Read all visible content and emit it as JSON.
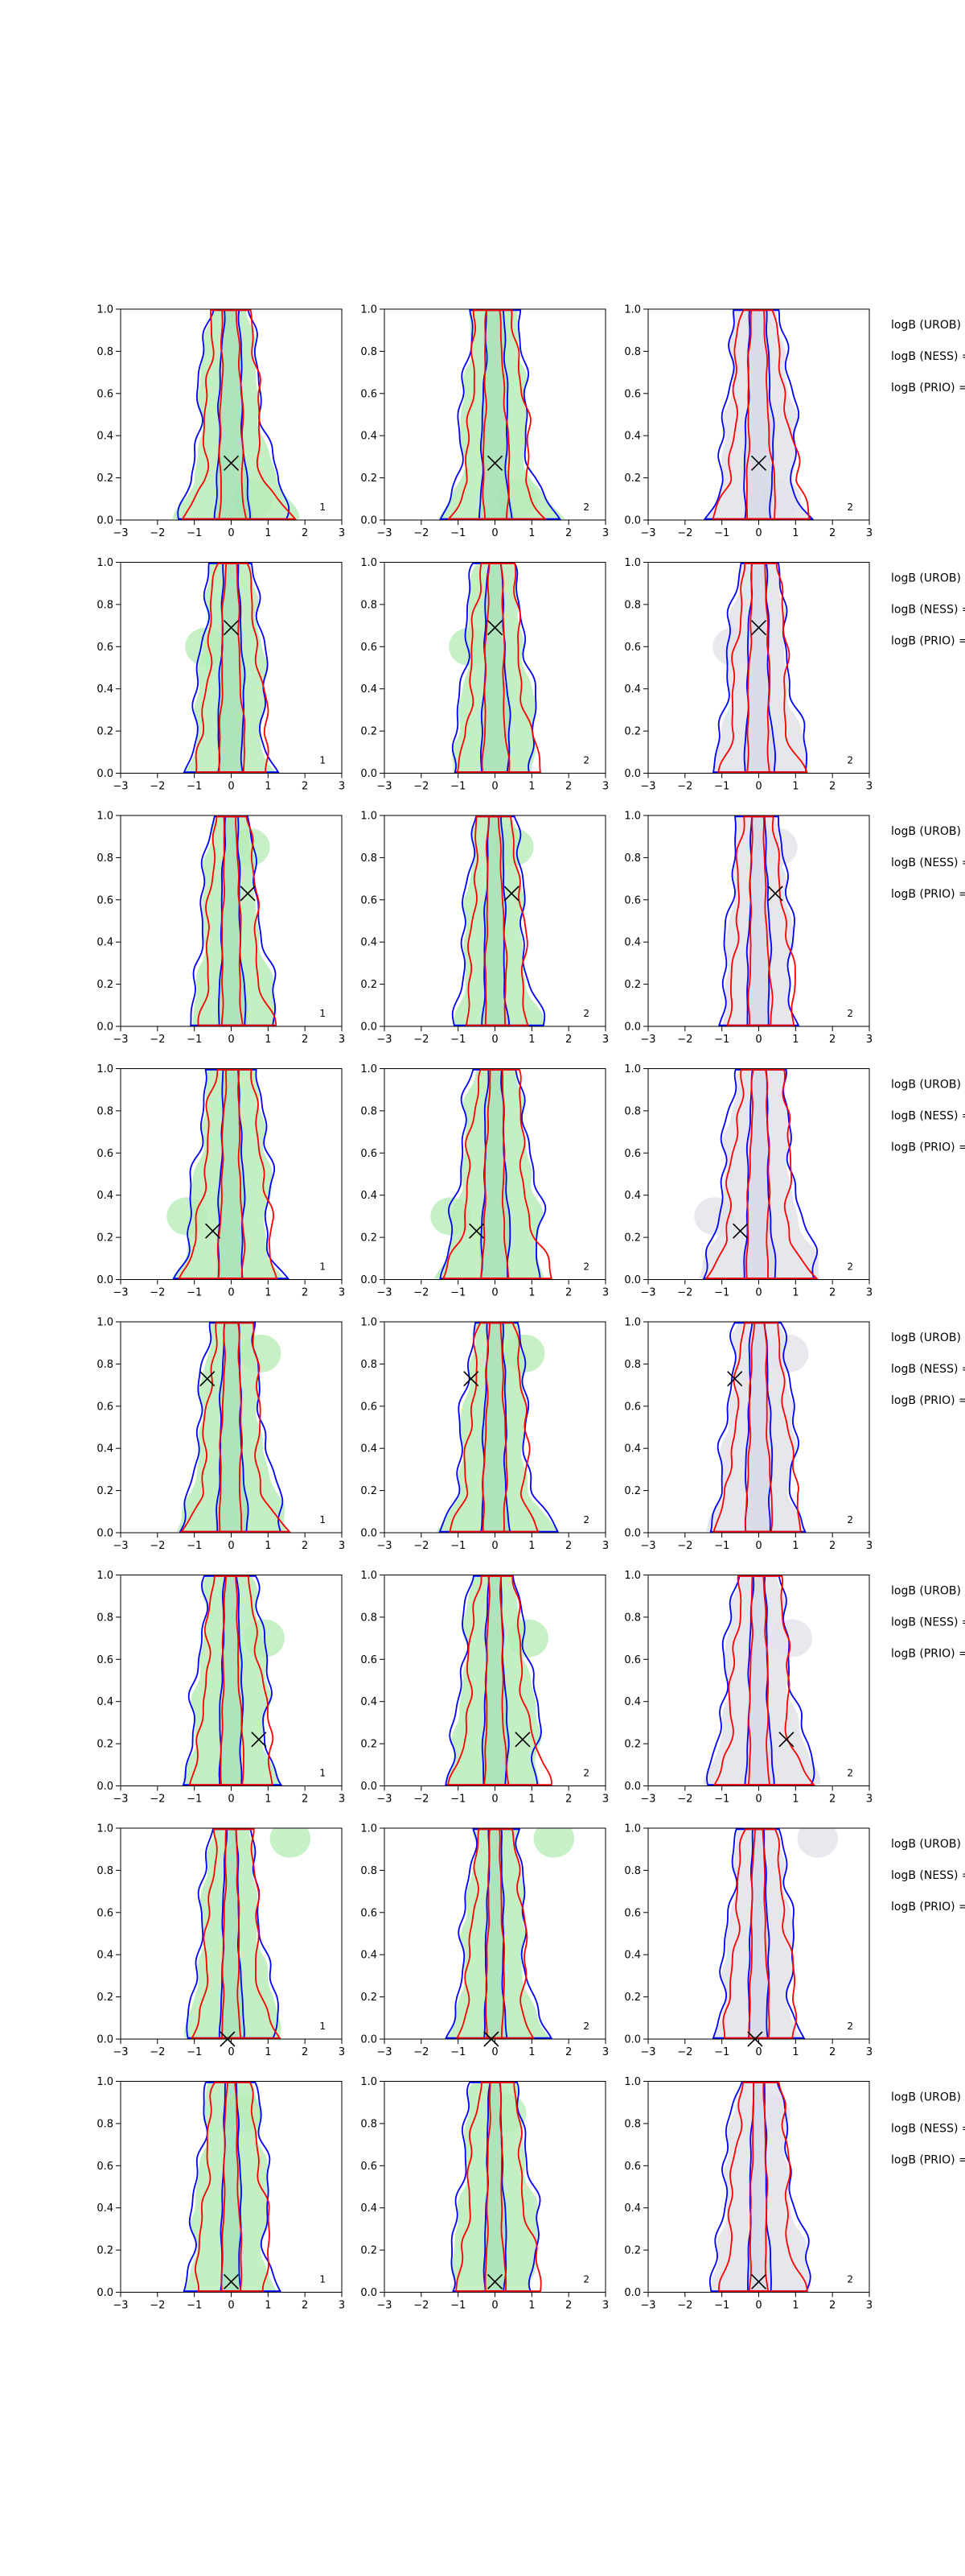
{
  "chart_data": {
    "type": "contour",
    "layout": "8 rows x 3 columns of panels",
    "xlim": [
      -3,
      3
    ],
    "ylim": [
      0.0,
      1.0
    ],
    "x_ticks": [
      "−3",
      "−2",
      "−1",
      "0",
      "1",
      "2",
      "3"
    ],
    "y_ticks": [
      "0.0",
      "0.2",
      "0.4",
      "0.6",
      "0.8",
      "1.0"
    ],
    "grid": false,
    "legend": "none",
    "colors": {
      "blue_contour": "#0000ff",
      "red_contour": "#ff0000",
      "green_fill": "#b9ecb9",
      "gray_fill": "#e2e2ea",
      "marker": "#000000"
    },
    "column_tags": [
      "1",
      "2",
      "2"
    ],
    "side_labels": [
      "logB (UROB) =",
      "logB (NESS) =",
      "logB (PRIO) ="
    ],
    "column_fill": [
      "green",
      "green",
      "gray"
    ],
    "rows": [
      {
        "marker": [
          0.0,
          0.27
        ],
        "shape": {
          "w_in": 0.5,
          "w_out": 1.05,
          "skew": 0.15,
          "tail": 0.25,
          "bulge_y": 0.1,
          "bulge_dx": 0.6
        }
      },
      {
        "marker": [
          0.0,
          0.69
        ],
        "shape": {
          "w_in": 0.45,
          "w_out": 1.0,
          "skew": 0.0,
          "tail": 0.1,
          "bulge_y": 0.6,
          "bulge_dx": -0.7
        }
      },
      {
        "marker": [
          0.45,
          0.63
        ],
        "shape": {
          "w_in": 0.4,
          "w_out": 0.95,
          "skew": 0.1,
          "tail": 0.05,
          "bulge_y": 0.85,
          "bulge_dx": 0.5
        }
      },
      {
        "marker": [
          -0.5,
          0.23
        ],
        "shape": {
          "w_in": 0.45,
          "w_out": 1.15,
          "skew": -0.1,
          "tail": 0.2,
          "bulge_y": 0.3,
          "bulge_dx": -1.2
        }
      },
      {
        "marker": [
          -0.65,
          0.73
        ],
        "shape": {
          "w_in": 0.45,
          "w_out": 1.05,
          "skew": -0.05,
          "tail": 0.2,
          "bulge_y": 0.85,
          "bulge_dx": 0.8
        }
      },
      {
        "marker": [
          0.75,
          0.22
        ],
        "shape": {
          "w_in": 0.4,
          "w_out": 1.1,
          "skew": 0.05,
          "tail": 0.15,
          "bulge_y": 0.7,
          "bulge_dx": 0.9
        }
      },
      {
        "marker": [
          -0.1,
          0.0
        ],
        "shape": {
          "w_in": 0.35,
          "w_out": 1.0,
          "skew": 0.0,
          "tail": 0.1,
          "bulge_y": 0.95,
          "bulge_dx": 1.6
        }
      },
      {
        "marker": [
          0.0,
          0.05
        ],
        "shape": {
          "w_in": 0.35,
          "w_out": 1.1,
          "skew": 0.0,
          "tail": 0.05,
          "bulge_y": 0.85,
          "bulge_dx": 0.3
        }
      }
    ]
  }
}
